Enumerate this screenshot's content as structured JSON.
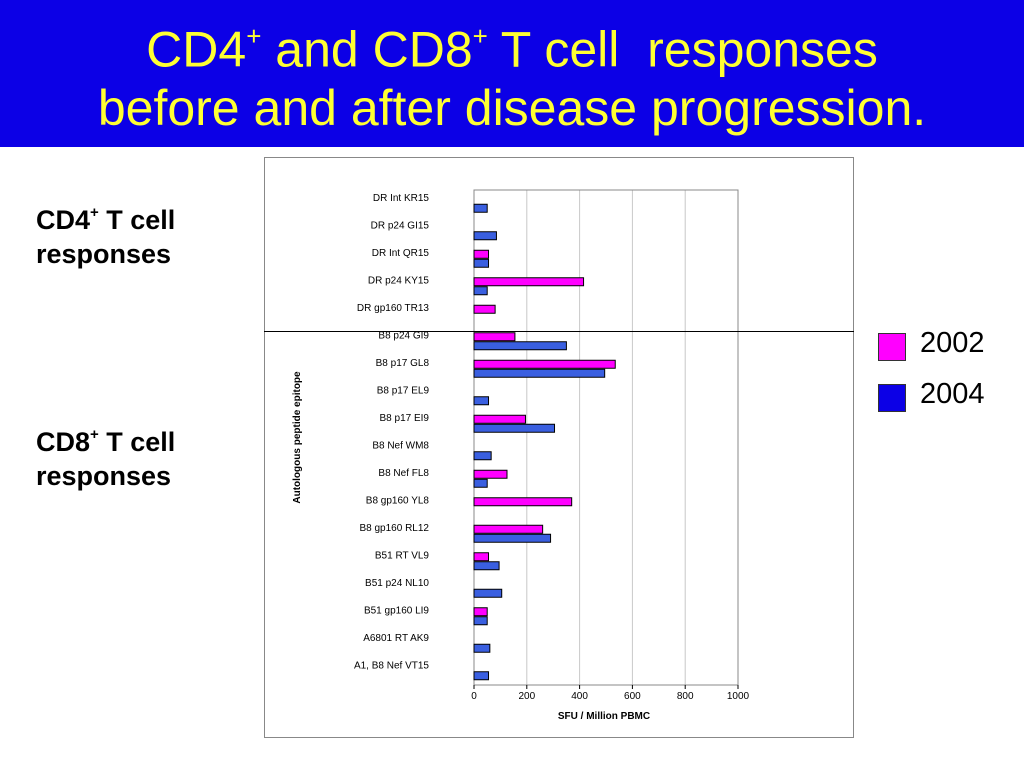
{
  "title": {
    "line1_a": "CD4",
    "line1_sup1": "+",
    "line1_b": " and CD8",
    "line1_sup2": "+",
    "line1_c": " T cell  responses",
    "line2": "before and after disease progression."
  },
  "side_labels": {
    "cd4_a": "CD4",
    "cd4_sup": "+",
    "cd4_b": " T cell",
    "cd4_c": "responses",
    "cd8_a": "CD8",
    "cd8_sup": "+",
    "cd8_b": " T cell",
    "cd8_c": "responses"
  },
  "colors": {
    "title_bg": "#0c00e6",
    "title_text": "#ffff33",
    "series_2002": "#ff00ff",
    "series_2004": "#3a5fe0"
  },
  "chart_data": {
    "type": "bar",
    "orientation": "horizontal",
    "xlabel": "SFU / Million PBMC",
    "ylabel": "Autologous peptide epitope",
    "xlim": [
      0,
      1000
    ],
    "xticks": [
      "0",
      "200",
      "400",
      "600",
      "800",
      "1000"
    ],
    "grid": "vertical",
    "categories": [
      "DR Int KR15",
      "DR p24 GI15",
      "DR Int QR15",
      "DR p24 KY15",
      "DR gp160 TR13",
      "B8 p24 GI9",
      "B8 p17 GL8",
      "B8 p17 EL9",
      "B8 p17 EI9",
      "B8 Nef WM8",
      "B8 Nef FL8",
      "B8 gp160 YL8",
      "B8 gp160 RL12",
      "B51 RT VL9",
      "B51 p24 NL10",
      "B51 gp160 LI9",
      "A6801 RT AK9",
      "A1, B8 Nef VT15"
    ],
    "series": [
      {
        "name": "2002",
        "values": [
          0,
          0,
          55,
          415,
          80,
          155,
          535,
          0,
          195,
          0,
          125,
          370,
          260,
          55,
          0,
          50,
          0,
          0
        ]
      },
      {
        "name": "2004",
        "values": [
          50,
          85,
          55,
          50,
          0,
          350,
          495,
          55,
          305,
          65,
          50,
          0,
          290,
          95,
          105,
          50,
          60,
          55
        ]
      }
    ],
    "legend": {
      "position": "right",
      "items": [
        {
          "label": "2002",
          "color": "#ff00ff"
        },
        {
          "label": "2004",
          "color": "#0c00e6"
        }
      ]
    }
  }
}
